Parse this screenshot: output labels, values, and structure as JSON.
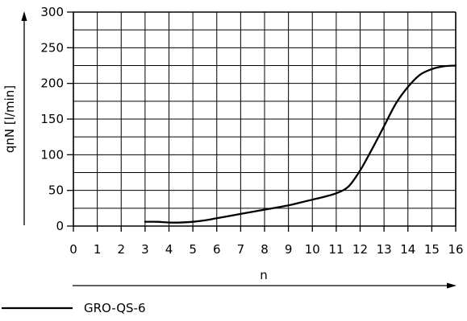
{
  "chart_data": {
    "type": "line",
    "title": "",
    "xlabel": "n",
    "ylabel": "qnN [l/min]",
    "xlim": [
      0,
      16
    ],
    "ylim": [
      0,
      300
    ],
    "x_ticks": [
      0,
      1,
      2,
      3,
      4,
      5,
      6,
      7,
      8,
      9,
      10,
      11,
      12,
      13,
      14,
      15,
      16
    ],
    "y_ticks": [
      0,
      50,
      100,
      150,
      200,
      250,
      300
    ],
    "grid": true,
    "legend_position": "bottom-left",
    "series": [
      {
        "name": "GRO-QS-6",
        "color": "#000000",
        "x": [
          3,
          3.5,
          4,
          4.5,
          5,
          5.5,
          6,
          6.5,
          7,
          7.5,
          8,
          8.5,
          9,
          9.5,
          10,
          10.5,
          11,
          11.5,
          12,
          12.5,
          13,
          13.5,
          14,
          14.5,
          15,
          15.5,
          16
        ],
        "y": [
          6,
          6,
          5,
          5,
          6,
          8,
          11,
          14,
          17,
          20,
          23,
          26,
          29,
          33,
          37,
          41,
          46,
          55,
          78,
          108,
          140,
          172,
          195,
          212,
          220,
          224,
          225
        ]
      }
    ]
  }
}
